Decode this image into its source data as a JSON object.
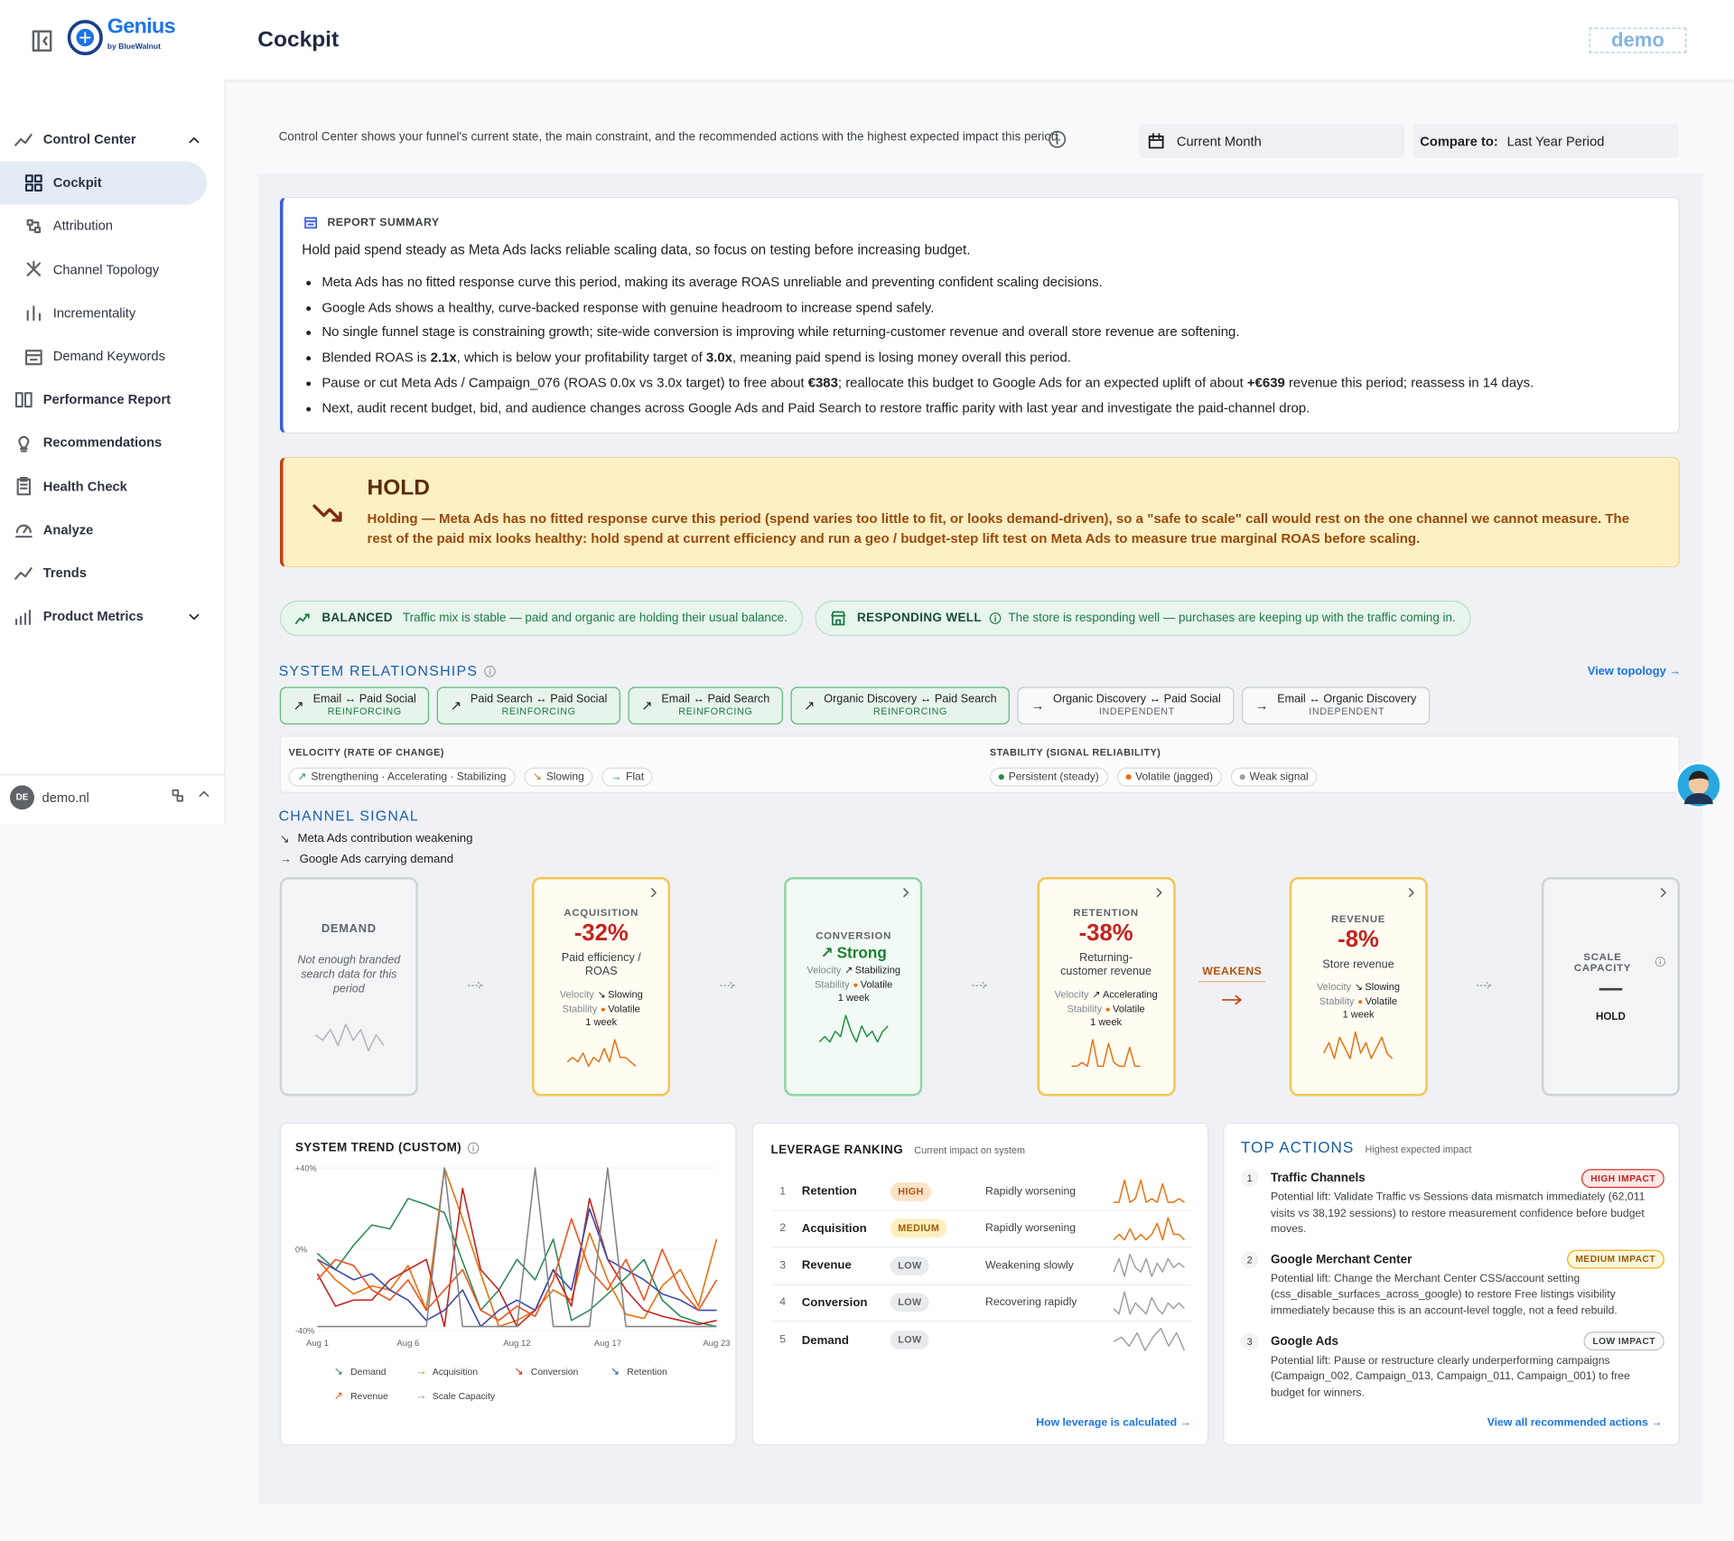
{
  "header": {
    "logo": "Genius",
    "logo_sub": "by BlueWalnut",
    "page_title": "Cockpit",
    "badge": "demo"
  },
  "sidebar": {
    "items": [
      {
        "label": "Control Center",
        "children": [
          {
            "label": "Cockpit",
            "active": true
          },
          {
            "label": "Attribution"
          },
          {
            "label": "Channel Topology"
          },
          {
            "label": "Incrementality"
          },
          {
            "label": "Demand Keywords"
          }
        ]
      },
      {
        "label": "Performance Report"
      },
      {
        "label": "Recommendations"
      },
      {
        "label": "Health Check"
      },
      {
        "label": "Analyze"
      },
      {
        "label": "Trends"
      },
      {
        "label": "Product Metrics",
        "expandable": true
      }
    ],
    "account": {
      "initials": "DE",
      "name": "demo.nl"
    }
  },
  "intro": {
    "text": "Control Center shows your funnel's current state, the main constraint, and the recommended actions with the highest expected impact this period.",
    "period": "Current Month",
    "compare_label": "Compare to:",
    "compare_value": "Last Year Period"
  },
  "summary": {
    "heading": "REPORT SUMMARY",
    "lead": "Hold paid spend steady as Meta Ads lacks reliable scaling data, so focus on testing before increasing budget.",
    "bullets": [
      [
        "Meta Ads has no fitted response curve this period, making its average ROAS unreliable and preventing confident scaling decisions."
      ],
      [
        "Google Ads shows a healthy, curve-backed response with genuine headroom to increase spend safely."
      ],
      [
        "No single funnel stage is constraining growth; site-wide conversion is improving while returning-customer revenue and overall store revenue are softening."
      ],
      [
        "Blended ROAS is ",
        "2.1x",
        ", which is below your profitability target of ",
        "3.0x",
        ", meaning paid spend is losing money overall this period."
      ],
      [
        "Pause or cut Meta Ads / Campaign_076 (ROAS 0.0x vs 3.0x target) to free about ",
        "€383",
        "; reallocate this budget to Google Ads for an expected uplift of about ",
        "+€639",
        " revenue this period; reassess in 14 days."
      ],
      [
        "Next, audit recent budget, bid, and audience changes across Google Ads and Paid Search to restore traffic parity with last year and investigate the paid-channel drop."
      ]
    ]
  },
  "hold": {
    "title": "HOLD",
    "text": "Holding — Meta Ads has no fitted response curve this period (spend varies too little to fit, or looks demand-driven), so a \"safe to scale\" call would rest on the one channel we cannot measure. The rest of the paid mix looks healthy: hold spend at current efficiency and run a geo / budget-step lift test on Meta Ads to measure true marginal ROAS before scaling."
  },
  "status_pills": [
    {
      "label": "BALANCED",
      "text": "Traffic mix is stable — paid and organic are holding their usual balance."
    },
    {
      "label": "RESPONDING WELL",
      "text": "The store is responding well — purchases are keeping up with the traffic coming in."
    }
  ],
  "relationships": {
    "title": "SYSTEM RELATIONSHIPS",
    "link": "View topology →",
    "items": [
      {
        "icon": "↗",
        "name": "Email ↔ Paid Social",
        "state": "REINFORCING"
      },
      {
        "icon": "↗",
        "name": "Paid Search ↔ Paid Social",
        "state": "REINFORCING"
      },
      {
        "icon": "↗",
        "name": "Email ↔ Paid Search",
        "state": "REINFORCING"
      },
      {
        "icon": "↗",
        "name": "Organic Discovery ↔ Paid Search",
        "state": "REINFORCING"
      },
      {
        "icon": "→",
        "name": "Organic Discovery ↔ Paid Social",
        "state": "INDEPENDENT"
      },
      {
        "icon": "→",
        "name": "Email ↔ Organic Discovery",
        "state": "INDEPENDENT"
      }
    ],
    "velocity": {
      "title": "VELOCITY (RATE OF CHANGE)",
      "items": [
        {
          "icon": "↗",
          "text": "Strengthening · Accelerating · Stabilizing"
        },
        {
          "icon": "↘",
          "text": "Slowing"
        },
        {
          "icon": "→",
          "text": "Flat"
        }
      ]
    },
    "stability": {
      "title": "STABILITY (SIGNAL RELIABILITY)",
      "items": [
        {
          "text": "Persistent (steady)",
          "color": "#1e8e3e"
        },
        {
          "text": "Volatile (jagged)",
          "color": "#e8710a"
        },
        {
          "text": "Weak signal",
          "color": "#9aa0a6"
        }
      ]
    }
  },
  "channel_signal": {
    "title": "CHANNEL SIGNAL",
    "notes": [
      {
        "icon": "↘",
        "text": "Meta Ads contribution weakening"
      },
      {
        "icon": "→",
        "text": "Google Ads carrying demand"
      }
    ],
    "labels": {
      "velocity": "Velocity",
      "stability": "Stability"
    },
    "stages": [
      {
        "name": "DEMAND",
        "note": "Not enough branded search data for this period",
        "tone": "neutral",
        "color": "#b0b4b8",
        "spark": [
          5,
          4,
          6,
          3,
          7,
          4,
          6,
          2,
          5,
          3
        ]
      },
      {
        "name": "ACQUISITION",
        "value": "-32%",
        "desc": "Paid efficiency / ROAS",
        "velocity_icon": "↘",
        "velocity": "Slowing",
        "stability": "Volatile",
        "window": "1 week",
        "tone": "warning",
        "color": "#e8710a",
        "spark": [
          3,
          4,
          3,
          5,
          2,
          4,
          3,
          6,
          3,
          8,
          4,
          4,
          3,
          2
        ]
      },
      {
        "name": "CONVERSION",
        "value_icon": "↗",
        "value": "Strong",
        "velocity_icon": "↗",
        "velocity": "Stabilizing",
        "stability": "Volatile",
        "window": "1 week",
        "tone": "positive",
        "color": "#1e8e3e",
        "spark": [
          3,
          4,
          3,
          5,
          4,
          8,
          5,
          3,
          6,
          4,
          5,
          3,
          5,
          6
        ]
      },
      {
        "name": "RETENTION",
        "value": "-38%",
        "desc": "Returning-customer revenue",
        "velocity_icon": "↗",
        "velocity": "Accelerating",
        "stability": "Volatile",
        "window": "1 week",
        "tone": "warning",
        "color": "#e8710a",
        "spark": [
          2,
          2,
          3,
          2,
          9,
          2,
          2,
          8,
          3,
          2,
          2,
          7,
          2,
          2
        ],
        "link_after": "WEAKENS"
      },
      {
        "name": "REVENUE",
        "value": "-8%",
        "desc": "Store revenue",
        "velocity_icon": "↘",
        "velocity": "Slowing",
        "stability": "Volatile",
        "window": "1 week",
        "tone": "warning",
        "color": "#e8710a",
        "spark": [
          4,
          6,
          3,
          7,
          5,
          3,
          8,
          4,
          6,
          3,
          5,
          7,
          4,
          3
        ]
      },
      {
        "name": "SCALE CAPACITY",
        "info": true,
        "value": "—",
        "status": "HOLD",
        "tone": "neutral"
      }
    ]
  },
  "system_trend": {
    "type": "line",
    "title": "SYSTEM TREND (CUSTOM)",
    "x": [
      "Aug 1",
      "Aug 2",
      "Aug 3",
      "Aug 4",
      "Aug 5",
      "Aug 6",
      "Aug 7",
      "Aug 8",
      "Aug 9",
      "Aug 10",
      "Aug 11",
      "Aug 12",
      "Aug 13",
      "Aug 14",
      "Aug 15",
      "Aug 16",
      "Aug 17",
      "Aug 18",
      "Aug 19",
      "Aug 20",
      "Aug 21",
      "Aug 22",
      "Aug 23"
    ],
    "xticks": [
      "Aug 1",
      "Aug 6",
      "Aug 12",
      "Aug 17",
      "Aug 23"
    ],
    "ylim": [
      -40,
      40
    ],
    "yticks": [
      {
        "value": 40,
        "label": "+40%"
      },
      {
        "value": 0,
        "label": "0%"
      },
      {
        "value": -40,
        "label": "-40%"
      }
    ],
    "grid": true,
    "series": [
      {
        "name": "Demand",
        "icon": "↘",
        "color": "#2e8b57",
        "values": [
          -2,
          -10,
          2,
          12,
          10,
          25,
          22,
          18,
          -6,
          -30,
          -20,
          -5,
          -15,
          5,
          -35,
          -30,
          -22,
          -14,
          -5,
          -25,
          -33,
          -36,
          -38
        ]
      },
      {
        "name": "Acquisition",
        "icon": "→",
        "color": "#e8710a",
        "values": [
          -5,
          -15,
          -22,
          -18,
          -20,
          -8,
          -30,
          40,
          15,
          -12,
          -38,
          -35,
          -30,
          -20,
          -25,
          8,
          -15,
          -32,
          -34,
          -18,
          -10,
          -28,
          5
        ]
      },
      {
        "name": "Conversion",
        "icon": "↘",
        "color": "#c5221f",
        "values": [
          -12,
          -28,
          -25,
          -25,
          -15,
          -10,
          -5,
          -38,
          30,
          -10,
          -20,
          -38,
          -30,
          -10,
          -28,
          25,
          -5,
          -20,
          -30,
          -33,
          -35,
          -37,
          -35
        ]
      },
      {
        "name": "Retention",
        "icon": "↘",
        "color": "#3949ab",
        "values": [
          -5,
          -10,
          -15,
          -12,
          -20,
          -25,
          -35,
          -30,
          -20,
          -38,
          -30,
          -25,
          -30,
          -10,
          -20,
          20,
          -5,
          -10,
          -15,
          -22,
          -25,
          -30,
          -30
        ]
      },
      {
        "name": "Revenue",
        "icon": "↗",
        "color": "#f4511e",
        "values": [
          -15,
          -5,
          -8,
          -20,
          -25,
          -15,
          -30,
          -20,
          -10,
          -30,
          -35,
          -28,
          -33,
          -15,
          15,
          -10,
          -20,
          -5,
          -25,
          0,
          -20,
          -30,
          -15
        ]
      },
      {
        "name": "Scale Capacity",
        "icon": "→",
        "color": "#80868b",
        "values": [
          -38,
          -38,
          -38,
          -38,
          -38,
          -38,
          -38,
          40,
          -38,
          -38,
          -38,
          -38,
          40,
          -38,
          -38,
          -38,
          40,
          -38,
          -38,
          -38,
          -38,
          -38,
          -38
        ]
      }
    ]
  },
  "leverage": {
    "title": "LEVERAGE RANKING",
    "subtitle": "Current impact on system",
    "link": "How leverage is calculated →",
    "rows": [
      {
        "rank": "1",
        "name": "Retention",
        "level": "HIGH",
        "trend": "Rapidly worsening",
        "spark": [
          2,
          2,
          8,
          2,
          3,
          8,
          2,
          3,
          2,
          7,
          2,
          2,
          3,
          2
        ]
      },
      {
        "rank": "2",
        "name": "Acquisition",
        "level": "MEDIUM",
        "trend": "Rapidly worsening",
        "spark": [
          3,
          4,
          3,
          5,
          3,
          4,
          3,
          4,
          6,
          3,
          7,
          4,
          4,
          3
        ]
      },
      {
        "rank": "3",
        "name": "Revenue",
        "level": "LOW",
        "trend": "Weakening slowly",
        "spark": [
          3,
          6,
          2,
          7,
          4,
          3,
          6,
          2,
          5,
          3,
          6,
          4,
          5,
          4
        ]
      },
      {
        "rank": "4",
        "name": "Conversion",
        "level": "LOW",
        "trend": "Recovering rapidly",
        "spark": [
          4,
          3,
          7,
          3,
          5,
          4,
          3,
          6,
          4,
          3,
          5,
          4,
          5,
          4
        ]
      },
      {
        "rank": "5",
        "name": "Demand",
        "level": "LOW",
        "spark": [
          4,
          5,
          3,
          6,
          2,
          5,
          7,
          3,
          6,
          2
        ]
      }
    ]
  },
  "actions": {
    "title": "TOP ACTIONS",
    "subtitle": "Highest expected impact",
    "link": "View all recommended actions →",
    "items": [
      {
        "rank": "1",
        "name": "Traffic Channels",
        "impact": "HIGH IMPACT",
        "text": "Potential lift: Validate Traffic vs Sessions data mismatch immediately (62,011 visits vs 38,192 sessions) to restore measurement confidence before budget moves."
      },
      {
        "rank": "2",
        "name": "Google Merchant Center",
        "impact": "MEDIUM IMPACT",
        "text": "Potential lift: Change the Merchant Center CSS/account setting (css_disable_surfaces_across_google) to restore Free listings visibility immediately because this is an account-level toggle, not a feed rebuild."
      },
      {
        "rank": "3",
        "name": "Google Ads",
        "impact": "LOW IMPACT",
        "text": "Potential lift: Pause or restructure clearly underperforming campaigns (Campaign_002, Campaign_013, Campaign_011, Campaign_001) to free budget for winners."
      }
    ]
  }
}
